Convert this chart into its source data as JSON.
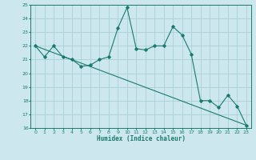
{
  "x_data": [
    0,
    1,
    2,
    3,
    4,
    5,
    6,
    7,
    8,
    9,
    10,
    11,
    12,
    13,
    14,
    15,
    16,
    17,
    18,
    19,
    20,
    21,
    22,
    23
  ],
  "y_line": [
    22,
    21.2,
    22,
    21.2,
    21,
    20.5,
    20.6,
    21,
    21.2,
    23.3,
    24.8,
    21.8,
    21.7,
    22,
    22,
    23.4,
    22.8,
    21.4,
    18,
    18,
    17.5,
    18.4,
    17.6,
    16.2
  ],
  "trend_x": [
    0,
    23
  ],
  "trend_y": [
    22,
    16.2
  ],
  "line_color": "#1a7a6e",
  "bg_color": "#cce8ee",
  "grid_color": "#aacfd8",
  "xlabel": "Humidex (Indice chaleur)",
  "ylim": [
    16,
    25
  ],
  "xlim": [
    -0.5,
    23.5
  ],
  "yticks": [
    16,
    17,
    18,
    19,
    20,
    21,
    22,
    23,
    24,
    25
  ],
  "xticks": [
    0,
    1,
    2,
    3,
    4,
    5,
    6,
    7,
    8,
    9,
    10,
    11,
    12,
    13,
    14,
    15,
    16,
    17,
    18,
    19,
    20,
    21,
    22,
    23
  ],
  "xtick_labels": [
    "0",
    "1",
    "2",
    "3",
    "4",
    "5",
    "6",
    "7",
    "8",
    "9",
    "10",
    "11",
    "12",
    "13",
    "14",
    "15",
    "16",
    "17",
    "18",
    "19",
    "20",
    "21",
    "22",
    "23"
  ]
}
